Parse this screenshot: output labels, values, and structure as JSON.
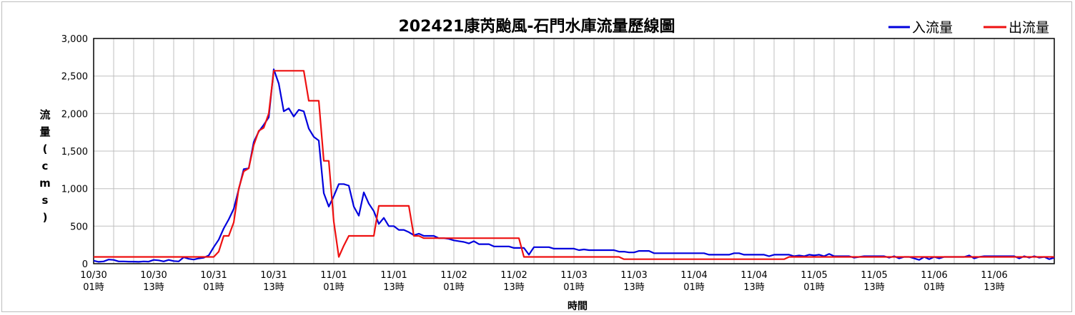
{
  "chart_data": {
    "type": "line",
    "title": "202421康芮颱風-石門水庫流量歷線圖",
    "xlabel": "時間",
    "ylabel_chars": [
      "流",
      "量",
      "(",
      "c",
      "m",
      "s",
      ")"
    ],
    "ylim": [
      0,
      3000
    ],
    "yticks": [
      0,
      500,
      1000,
      1500,
      2000,
      2500,
      3000
    ],
    "ytick_labels": [
      "0",
      "500",
      "1,000",
      "1,500",
      "2,000",
      "2,500",
      "3,000"
    ],
    "x_range_hours": [
      0,
      192
    ],
    "xtick_labels": [
      {
        "hour": 0,
        "date": "10/30",
        "time": "01時"
      },
      {
        "hour": 12,
        "date": "10/30",
        "time": "13時"
      },
      {
        "hour": 24,
        "date": "10/31",
        "time": "01時"
      },
      {
        "hour": 36,
        "date": "10/31",
        "time": "13時"
      },
      {
        "hour": 48,
        "date": "11/01",
        "time": "01時"
      },
      {
        "hour": 60,
        "date": "11/01",
        "time": "13時"
      },
      {
        "hour": 72,
        "date": "11/02",
        "time": "01時"
      },
      {
        "hour": 84,
        "date": "11/02",
        "time": "13時"
      },
      {
        "hour": 96,
        "date": "11/03",
        "time": "01時"
      },
      {
        "hour": 108,
        "date": "11/03",
        "time": "13時"
      },
      {
        "hour": 120,
        "date": "11/04",
        "time": "01時"
      },
      {
        "hour": 132,
        "date": "11/04",
        "time": "13時"
      },
      {
        "hour": 144,
        "date": "11/05",
        "time": "01時"
      },
      {
        "hour": 156,
        "date": "11/05",
        "time": "13時"
      },
      {
        "hour": 168,
        "date": "11/06",
        "time": "01時"
      },
      {
        "hour": 180,
        "date": "11/06",
        "time": "13時"
      }
    ],
    "grid": true,
    "legend_position": "top-right",
    "series": [
      {
        "name": "入流量",
        "color": "#0000dd",
        "points": [
          [
            0,
            40
          ],
          [
            1,
            25
          ],
          [
            2,
            30
          ],
          [
            3,
            55
          ],
          [
            4,
            50
          ],
          [
            5,
            30
          ],
          [
            6,
            30
          ],
          [
            7,
            28
          ],
          [
            8,
            28
          ],
          [
            9,
            25
          ],
          [
            10,
            30
          ],
          [
            11,
            28
          ],
          [
            12,
            50
          ],
          [
            13,
            45
          ],
          [
            14,
            30
          ],
          [
            15,
            50
          ],
          [
            16,
            35
          ],
          [
            17,
            30
          ],
          [
            18,
            85
          ],
          [
            19,
            65
          ],
          [
            20,
            55
          ],
          [
            21,
            70
          ],
          [
            22,
            80
          ],
          [
            23,
            110
          ],
          [
            24,
            220
          ],
          [
            25,
            320
          ],
          [
            26,
            470
          ],
          [
            27,
            590
          ],
          [
            28,
            730
          ],
          [
            29,
            990
          ],
          [
            30,
            1260
          ],
          [
            31,
            1270
          ],
          [
            32,
            1620
          ],
          [
            33,
            1760
          ],
          [
            34,
            1850
          ],
          [
            35,
            1950
          ],
          [
            36,
            2590
          ],
          [
            37,
            2400
          ],
          [
            38,
            2030
          ],
          [
            39,
            2070
          ],
          [
            40,
            1960
          ],
          [
            41,
            2050
          ],
          [
            42,
            2030
          ],
          [
            43,
            1800
          ],
          [
            44,
            1690
          ],
          [
            45,
            1640
          ],
          [
            46,
            940
          ],
          [
            47,
            760
          ],
          [
            48,
            900
          ],
          [
            49,
            1060
          ],
          [
            50,
            1060
          ],
          [
            51,
            1040
          ],
          [
            52,
            760
          ],
          [
            53,
            640
          ],
          [
            54,
            950
          ],
          [
            55,
            800
          ],
          [
            56,
            700
          ],
          [
            57,
            530
          ],
          [
            58,
            610
          ],
          [
            59,
            500
          ],
          [
            60,
            500
          ],
          [
            61,
            450
          ],
          [
            62,
            450
          ],
          [
            63,
            420
          ],
          [
            64,
            380
          ],
          [
            65,
            400
          ],
          [
            66,
            370
          ],
          [
            67,
            370
          ],
          [
            68,
            370
          ],
          [
            69,
            340
          ],
          [
            70,
            340
          ],
          [
            71,
            330
          ],
          [
            72,
            310
          ],
          [
            73,
            300
          ],
          [
            74,
            290
          ],
          [
            75,
            270
          ],
          [
            76,
            300
          ],
          [
            77,
            260
          ],
          [
            78,
            260
          ],
          [
            79,
            260
          ],
          [
            80,
            230
          ],
          [
            81,
            230
          ],
          [
            82,
            230
          ],
          [
            83,
            230
          ],
          [
            84,
            210
          ],
          [
            85,
            210
          ],
          [
            86,
            210
          ],
          [
            87,
            120
          ],
          [
            88,
            220
          ],
          [
            89,
            220
          ],
          [
            90,
            220
          ],
          [
            91,
            220
          ],
          [
            92,
            200
          ],
          [
            93,
            200
          ],
          [
            94,
            200
          ],
          [
            95,
            200
          ],
          [
            96,
            200
          ],
          [
            97,
            180
          ],
          [
            98,
            190
          ],
          [
            99,
            180
          ],
          [
            100,
            180
          ],
          [
            101,
            180
          ],
          [
            102,
            180
          ],
          [
            103,
            180
          ],
          [
            104,
            180
          ],
          [
            105,
            160
          ],
          [
            106,
            160
          ],
          [
            107,
            150
          ],
          [
            108,
            150
          ],
          [
            109,
            170
          ],
          [
            110,
            170
          ],
          [
            111,
            170
          ],
          [
            112,
            140
          ],
          [
            113,
            140
          ],
          [
            114,
            140
          ],
          [
            115,
            140
          ],
          [
            116,
            140
          ],
          [
            117,
            140
          ],
          [
            118,
            140
          ],
          [
            119,
            140
          ],
          [
            120,
            140
          ],
          [
            121,
            140
          ],
          [
            122,
            140
          ],
          [
            123,
            120
          ],
          [
            124,
            120
          ],
          [
            125,
            120
          ],
          [
            126,
            120
          ],
          [
            127,
            120
          ],
          [
            128,
            140
          ],
          [
            129,
            140
          ],
          [
            130,
            120
          ],
          [
            131,
            120
          ],
          [
            132,
            120
          ],
          [
            133,
            120
          ],
          [
            134,
            120
          ],
          [
            135,
            100
          ],
          [
            136,
            120
          ],
          [
            137,
            120
          ],
          [
            138,
            120
          ],
          [
            139,
            120
          ],
          [
            140,
            100
          ],
          [
            141,
            110
          ],
          [
            142,
            100
          ],
          [
            143,
            120
          ],
          [
            144,
            110
          ],
          [
            145,
            120
          ],
          [
            146,
            100
          ],
          [
            147,
            130
          ],
          [
            148,
            100
          ],
          [
            149,
            100
          ],
          [
            150,
            100
          ],
          [
            151,
            100
          ],
          [
            152,
            80
          ],
          [
            153,
            90
          ],
          [
            154,
            100
          ],
          [
            155,
            100
          ],
          [
            156,
            100
          ],
          [
            157,
            100
          ],
          [
            158,
            100
          ],
          [
            159,
            80
          ],
          [
            160,
            100
          ],
          [
            161,
            70
          ],
          [
            162,
            90
          ],
          [
            163,
            90
          ],
          [
            164,
            70
          ],
          [
            165,
            50
          ],
          [
            166,
            90
          ],
          [
            167,
            60
          ],
          [
            168,
            90
          ],
          [
            169,
            70
          ],
          [
            170,
            90
          ],
          [
            171,
            90
          ],
          [
            172,
            90
          ],
          [
            173,
            90
          ],
          [
            174,
            90
          ],
          [
            175,
            110
          ],
          [
            176,
            70
          ],
          [
            177,
            90
          ],
          [
            178,
            100
          ],
          [
            179,
            100
          ],
          [
            180,
            100
          ],
          [
            181,
            100
          ],
          [
            182,
            100
          ],
          [
            183,
            100
          ],
          [
            184,
            100
          ],
          [
            185,
            70
          ],
          [
            186,
            100
          ],
          [
            187,
            80
          ],
          [
            188,
            100
          ],
          [
            189,
            80
          ],
          [
            190,
            90
          ],
          [
            191,
            60
          ],
          [
            192,
            80
          ]
        ]
      },
      {
        "name": "出流量",
        "color": "#ee1111",
        "points": [
          [
            0,
            90
          ],
          [
            24,
            90
          ],
          [
            25,
            160
          ],
          [
            26,
            370
          ],
          [
            27,
            370
          ],
          [
            28,
            550
          ],
          [
            29,
            1000
          ],
          [
            30,
            1230
          ],
          [
            31,
            1270
          ],
          [
            32,
            1580
          ],
          [
            33,
            1770
          ],
          [
            34,
            1810
          ],
          [
            35,
            2000
          ],
          [
            36,
            2570
          ],
          [
            37,
            2570
          ],
          [
            42,
            2570
          ],
          [
            43,
            2170
          ],
          [
            44,
            2170
          ],
          [
            45,
            2170
          ],
          [
            46,
            1370
          ],
          [
            47,
            1370
          ],
          [
            48,
            560
          ],
          [
            49,
            90
          ],
          [
            50,
            240
          ],
          [
            51,
            370
          ],
          [
            52,
            370
          ],
          [
            56,
            370
          ],
          [
            57,
            770
          ],
          [
            58,
            770
          ],
          [
            63,
            770
          ],
          [
            64,
            370
          ],
          [
            65,
            370
          ],
          [
            66,
            340
          ],
          [
            67,
            340
          ],
          [
            70,
            340
          ],
          [
            85,
            340
          ],
          [
            86,
            90
          ],
          [
            87,
            90
          ],
          [
            105,
            90
          ],
          [
            106,
            60
          ],
          [
            107,
            60
          ],
          [
            138,
            60
          ],
          [
            139,
            90
          ],
          [
            192,
            90
          ]
        ]
      }
    ]
  }
}
